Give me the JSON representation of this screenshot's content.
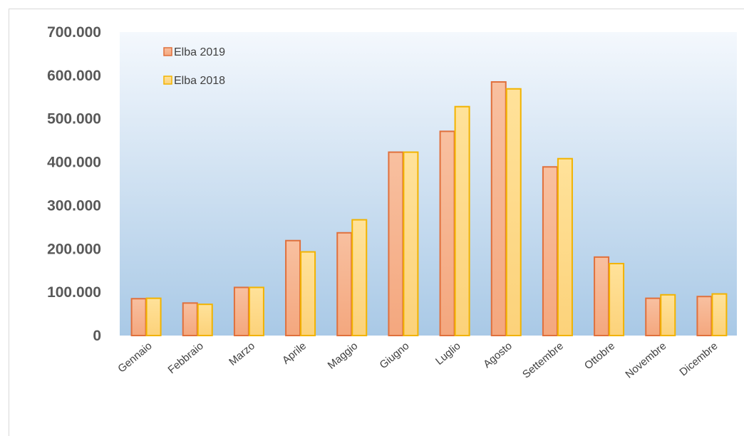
{
  "chart_data": {
    "type": "bar",
    "categories": [
      "Gennaio",
      "Febbraio",
      "Marzo",
      "Aprile",
      "Maggio",
      "Giugno",
      "Luglio",
      "Agosto",
      "Settembre",
      "Ottobre",
      "Novembre",
      "Dicembre"
    ],
    "series": [
      {
        "name": "Elba 2019",
        "values": [
          85000,
          75000,
          111000,
          219000,
          237000,
          423000,
          471000,
          585000,
          389000,
          181000,
          86000,
          90000
        ]
      },
      {
        "name": "Elba 2018",
        "values": [
          86000,
          72000,
          111000,
          193000,
          267000,
          423000,
          528000,
          569000,
          408000,
          166000,
          94000,
          96000
        ]
      }
    ],
    "yticks": [
      "0",
      "100.000",
      "200.000",
      "300.000",
      "400.000",
      "500.000",
      "600.000",
      "700.000"
    ],
    "ylim": [
      0,
      700000
    ],
    "title": "",
    "xlabel": "",
    "ylabel": "",
    "grid": false,
    "legend_position": "top-left inside plot",
    "colors": {
      "series_2019_fill_top": "#f8c0a0",
      "series_2019_fill_bottom": "#f4a77e",
      "series_2019_border": "#e0703c",
      "series_2018_fill_top": "#ffe29a",
      "series_2018_fill_bottom": "#fcd27a",
      "series_2018_border": "#f2b300",
      "plot_bg_top": "#f4f8fd",
      "plot_bg_bottom": "#a9c9e6"
    }
  }
}
